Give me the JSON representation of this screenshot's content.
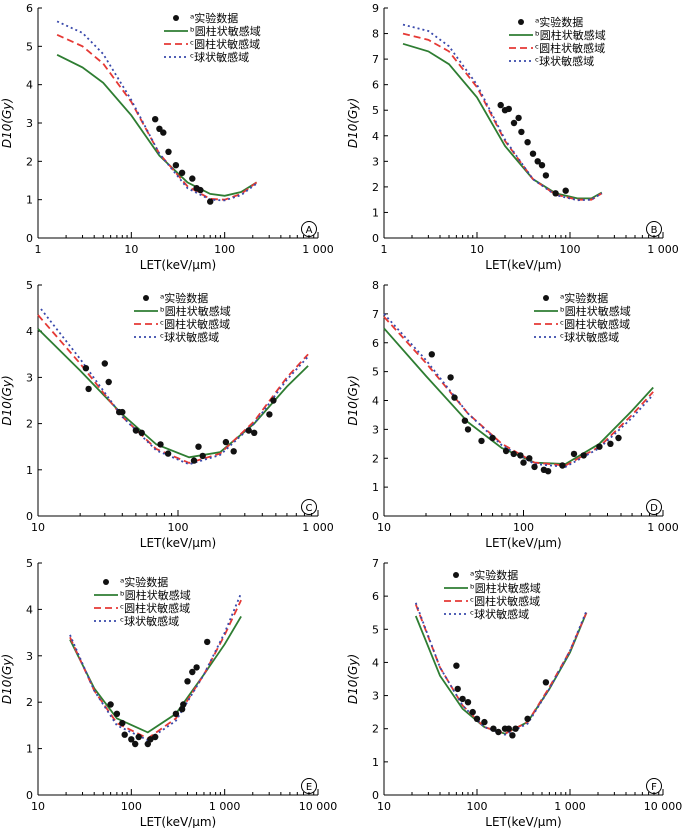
{
  "colors": {
    "experimental": "#111111",
    "cylinder_b": "#2e7d32",
    "cylinder_c": "#e53935",
    "sphere": "#3949ab"
  },
  "legend_labels": [
    "ᵃ实验数据",
    "ᵇ圆柱状敏感域",
    "ᶜ圆柱状敏感域",
    "ᶜ球状敏感域"
  ],
  "chart_data": [
    {
      "panel": "A",
      "type": "line",
      "x_scale": "log",
      "xlim": [
        1,
        1000
      ],
      "ylim": [
        0,
        6
      ],
      "x_ticks": [
        1,
        10,
        100,
        1000
      ],
      "x_tick_labels": [
        "1",
        "10",
        "100",
        "1 000"
      ],
      "y_ticks": [
        0,
        1,
        2,
        3,
        4,
        5,
        6
      ],
      "y_tick_labels": [
        "0",
        "1",
        "2",
        "3",
        "4",
        "5",
        "6"
      ],
      "xlabel": "LET(keV/μm)",
      "ylabel": "D10(Gy)",
      "legend": [
        "ᵃ实验数据",
        "ᵇ圆柱状敏感域",
        "ᶜ圆柱状敏感域",
        "ᶜ球状敏感域"
      ],
      "series": [
        {
          "name": "ᵃ实验数据",
          "style": "scatter",
          "x": [
            18,
            20,
            22,
            25,
            30,
            35,
            45,
            50,
            55,
            70
          ],
          "y": [
            3.1,
            2.85,
            2.75,
            2.25,
            1.9,
            1.7,
            1.55,
            1.3,
            1.25,
            0.95
          ]
        },
        {
          "name": "ᵇ圆柱状敏感域",
          "style": "solid",
          "x": [
            1.6,
            3,
            5,
            10,
            20,
            40,
            70,
            100,
            150,
            220
          ],
          "y": [
            4.78,
            4.45,
            4.05,
            3.2,
            2.15,
            1.45,
            1.15,
            1.1,
            1.2,
            1.45
          ]
        },
        {
          "name": "ᶜ圆柱状敏感域",
          "style": "dashed",
          "x": [
            1.6,
            3,
            5,
            10,
            20,
            40,
            70,
            100,
            150,
            220
          ],
          "y": [
            5.3,
            5.0,
            4.55,
            3.55,
            2.2,
            1.35,
            1.02,
            1.0,
            1.15,
            1.45
          ]
        },
        {
          "name": "ᶜ球状敏感域",
          "style": "dotted",
          "x": [
            1.6,
            3,
            5,
            10,
            20,
            40,
            70,
            100,
            150,
            220
          ],
          "y": [
            5.65,
            5.35,
            4.8,
            3.6,
            2.2,
            1.3,
            1.0,
            0.98,
            1.12,
            1.42
          ]
        }
      ]
    },
    {
      "panel": "B",
      "type": "line",
      "x_scale": "log",
      "xlim": [
        1,
        1000
      ],
      "ylim": [
        0,
        9
      ],
      "x_ticks": [
        1,
        10,
        100,
        1000
      ],
      "x_tick_labels": [
        "1",
        "10",
        "100",
        "1 000"
      ],
      "y_ticks": [
        0,
        1,
        2,
        3,
        4,
        5,
        6,
        7,
        8,
        9
      ],
      "y_tick_labels": [
        "0",
        "1",
        "2",
        "3",
        "4",
        "5",
        "6",
        "7",
        "8",
        "9"
      ],
      "xlabel": "LET(keV/μm)",
      "ylabel": "D10(Gy)",
      "legend": [
        "ᵃ实验数据",
        "ᵇ圆柱状敏感域",
        "ᶜ圆柱状敏感域",
        "ᶜ球状敏感域"
      ],
      "series": [
        {
          "name": "ᵃ实验数据",
          "style": "scatter",
          "x": [
            18,
            20,
            22,
            25,
            28,
            30,
            35,
            40,
            45,
            50,
            55,
            70,
            90
          ],
          "y": [
            5.2,
            5.0,
            5.05,
            4.5,
            4.7,
            4.15,
            3.75,
            3.3,
            3.0,
            2.85,
            2.45,
            1.75,
            1.85
          ]
        },
        {
          "name": "ᵇ圆柱状敏感域",
          "style": "solid",
          "x": [
            1.6,
            3,
            5,
            10,
            20,
            40,
            70,
            120,
            170,
            220
          ],
          "y": [
            7.6,
            7.3,
            6.8,
            5.5,
            3.6,
            2.3,
            1.75,
            1.55,
            1.55,
            1.78
          ]
        },
        {
          "name": "ᶜ圆柱状敏感域",
          "style": "dashed",
          "x": [
            1.6,
            3,
            5,
            10,
            20,
            40,
            70,
            120,
            170,
            220
          ],
          "y": [
            8.0,
            7.75,
            7.3,
            5.9,
            3.8,
            2.3,
            1.7,
            1.5,
            1.5,
            1.75
          ]
        },
        {
          "name": "ᶜ球状敏感域",
          "style": "dotted",
          "x": [
            1.6,
            3,
            5,
            10,
            20,
            40,
            70,
            120,
            170,
            220
          ],
          "y": [
            8.35,
            8.1,
            7.5,
            6.0,
            3.85,
            2.3,
            1.68,
            1.48,
            1.5,
            1.75
          ]
        }
      ]
    },
    {
      "panel": "C",
      "type": "line",
      "x_scale": "log",
      "xlim": [
        10,
        1000
      ],
      "ylim": [
        0,
        5
      ],
      "x_ticks": [
        10,
        100,
        1000
      ],
      "x_tick_labels": [
        "10",
        "100",
        "1 000"
      ],
      "y_ticks": [
        0,
        1,
        2,
        3,
        4,
        5
      ],
      "y_tick_labels": [
        "0",
        "1",
        "2",
        "3",
        "4",
        "5"
      ],
      "xlabel": "LET(keV/μm)",
      "ylabel": "D10(Gy)",
      "legend": [
        "ᵃ实验数据",
        "ᵇ圆柱状敏感域",
        "ᶜ圆柱状敏感域",
        "ᶜ球状敏感域"
      ],
      "series": [
        {
          "name": "ᵃ实验数据",
          "style": "scatter",
          "x": [
            22,
            23,
            30,
            32,
            38,
            40,
            50,
            55,
            75,
            85,
            130,
            140,
            150,
            220,
            250,
            320,
            350,
            450,
            480
          ],
          "y": [
            3.2,
            2.75,
            3.3,
            2.9,
            2.25,
            2.25,
            1.85,
            1.8,
            1.55,
            1.35,
            1.2,
            1.5,
            1.3,
            1.6,
            1.4,
            1.85,
            1.8,
            2.2,
            2.5
          ]
        },
        {
          "name": "ᵇ圆柱状敏感域",
          "style": "solid",
          "x": [
            10,
            20,
            40,
            70,
            120,
            200,
            350,
            600,
            850
          ],
          "y": [
            4.05,
            3.15,
            2.2,
            1.55,
            1.27,
            1.38,
            2.0,
            2.8,
            3.25
          ]
        },
        {
          "name": "ᶜ圆柱状敏感域",
          "style": "dashed",
          "x": [
            10,
            20,
            40,
            70,
            120,
            200,
            350,
            600,
            850
          ],
          "y": [
            4.35,
            3.3,
            2.15,
            1.45,
            1.15,
            1.35,
            2.05,
            3.0,
            3.5
          ]
        },
        {
          "name": "ᶜ球状敏感域",
          "style": "dotted",
          "x": [
            10.5,
            20,
            40,
            70,
            120,
            200,
            350,
            600,
            850
          ],
          "y": [
            4.48,
            3.4,
            2.15,
            1.42,
            1.12,
            1.32,
            2.0,
            2.95,
            3.45
          ]
        }
      ]
    },
    {
      "panel": "D",
      "type": "line",
      "x_scale": "log",
      "xlim": [
        10,
        1000
      ],
      "ylim": [
        0,
        8
      ],
      "x_ticks": [
        10,
        100,
        1000
      ],
      "x_tick_labels": [
        "10",
        "100",
        "1 000"
      ],
      "y_ticks": [
        0,
        1,
        2,
        3,
        4,
        5,
        6,
        7,
        8
      ],
      "y_tick_labels": [
        "0",
        "1",
        "2",
        "3",
        "4",
        "5",
        "6",
        "7",
        "8"
      ],
      "xlabel": "LET(keV/μm)",
      "ylabel": "D10(Gy)",
      "legend": [
        "ᵃ实验数据",
        "ᵇ圆柱状敏感域",
        "ᶜ圆柱状敏感域",
        "ᶜ球状敏感域"
      ],
      "series": [
        {
          "name": "ᵃ实验数据",
          "style": "scatter",
          "x": [
            22,
            30,
            32,
            38,
            40,
            50,
            60,
            75,
            85,
            95,
            100,
            110,
            120,
            140,
            150,
            190,
            230,
            270,
            350,
            420,
            480
          ],
          "y": [
            5.6,
            4.8,
            4.1,
            3.3,
            3.0,
            2.6,
            2.7,
            2.25,
            2.15,
            2.1,
            1.85,
            2.0,
            1.7,
            1.6,
            1.55,
            1.75,
            2.15,
            2.1,
            2.4,
            2.5,
            2.7
          ]
        },
        {
          "name": "ᵇ圆柱状敏感域",
          "style": "solid",
          "x": [
            10,
            20,
            40,
            70,
            120,
            200,
            350,
            600,
            850
          ],
          "y": [
            6.5,
            4.85,
            3.25,
            2.35,
            1.85,
            1.8,
            2.5,
            3.65,
            4.45
          ]
        },
        {
          "name": "ᶜ圆柱状敏感域",
          "style": "dashed",
          "x": [
            10,
            20,
            40,
            70,
            120,
            200,
            350,
            600,
            850
          ],
          "y": [
            6.9,
            5.3,
            3.55,
            2.5,
            1.85,
            1.75,
            2.4,
            3.5,
            4.3
          ]
        },
        {
          "name": "ᶜ球状敏感域",
          "style": "dotted",
          "x": [
            10,
            20,
            40,
            70,
            120,
            200,
            350,
            600,
            850
          ],
          "y": [
            7.0,
            5.4,
            3.55,
            2.45,
            1.8,
            1.7,
            2.35,
            3.4,
            4.2
          ]
        }
      ]
    },
    {
      "panel": "E",
      "type": "line",
      "x_scale": "log",
      "xlim": [
        10,
        10000
      ],
      "ylim": [
        0,
        5
      ],
      "x_ticks": [
        10,
        100,
        1000,
        10000
      ],
      "x_tick_labels": [
        "10",
        "100",
        "1 000",
        "10 000"
      ],
      "y_ticks": [
        0,
        1,
        2,
        3,
        4,
        5
      ],
      "y_tick_labels": [
        "0",
        "1",
        "2",
        "3",
        "4",
        "5"
      ],
      "xlabel": "LET(keV/μm)",
      "ylabel": "D10(Gy)",
      "legend": [
        "ᵃ实验数据",
        "ᵇ圆柱状敏感域",
        "ᶜ圆柱状敏感域",
        "ᶜ球状敏感域"
      ],
      "series": [
        {
          "name": "ᵃ实验数据",
          "style": "scatter",
          "x": [
            60,
            70,
            80,
            85,
            100,
            110,
            120,
            150,
            160,
            180,
            300,
            350,
            360,
            400,
            450,
            500,
            650
          ],
          "y": [
            1.95,
            1.75,
            1.55,
            1.3,
            1.2,
            1.1,
            1.25,
            1.1,
            1.2,
            1.25,
            1.75,
            1.85,
            1.95,
            2.45,
            2.65,
            2.75,
            3.3
          ]
        },
        {
          "name": "ᵇ圆柱状敏感域",
          "style": "solid",
          "x": [
            22,
            40,
            70,
            150,
            300,
            600,
            1000,
            1500
          ],
          "y": [
            3.35,
            2.3,
            1.65,
            1.35,
            1.75,
            2.6,
            3.25,
            3.85
          ]
        },
        {
          "name": "ᶜ圆柱状敏感域",
          "style": "dashed",
          "x": [
            22,
            40,
            70,
            150,
            300,
            600,
            1000,
            1500
          ],
          "y": [
            3.4,
            2.25,
            1.55,
            1.22,
            1.65,
            2.6,
            3.45,
            4.2
          ]
        },
        {
          "name": "ᶜ球状敏感域",
          "style": "dotted",
          "x": [
            22,
            40,
            70,
            150,
            300,
            600,
            1000,
            1500
          ],
          "y": [
            3.45,
            2.25,
            1.5,
            1.18,
            1.6,
            2.6,
            3.5,
            4.35
          ]
        }
      ]
    },
    {
      "panel": "F",
      "type": "line",
      "x_scale": "log",
      "xlim": [
        10,
        10000
      ],
      "ylim": [
        0,
        7
      ],
      "x_ticks": [
        10,
        100,
        1000,
        10000
      ],
      "x_tick_labels": [
        "10",
        "100",
        "1 000",
        "10 000"
      ],
      "y_ticks": [
        0,
        1,
        2,
        3,
        4,
        5,
        6,
        7
      ],
      "y_tick_labels": [
        "0",
        "1",
        "2",
        "3",
        "4",
        "5",
        "6",
        "7"
      ],
      "xlabel": "LET(keV/μm)",
      "ylabel": "D10(Gy)",
      "legend": [
        "ᵃ实验数据",
        "ᵇ圆柱状敏感域",
        "ᶜ圆柱状敏感域",
        "ᶜ球状敏感域"
      ],
      "series": [
        {
          "name": "ᵃ实验数据",
          "style": "scatter",
          "x": [
            60,
            62,
            70,
            80,
            90,
            100,
            120,
            150,
            170,
            200,
            220,
            240,
            260,
            350,
            550
          ],
          "y": [
            3.9,
            3.2,
            2.9,
            2.8,
            2.5,
            2.3,
            2.2,
            2.0,
            1.9,
            2.0,
            2.0,
            1.8,
            2.0,
            2.3,
            3.4
          ]
        },
        {
          "name": "ᵇ圆柱状敏感域",
          "style": "solid",
          "x": [
            22,
            40,
            70,
            120,
            200,
            350,
            600,
            1000,
            1500
          ],
          "y": [
            5.4,
            3.6,
            2.6,
            2.05,
            1.85,
            2.2,
            3.2,
            4.3,
            5.5
          ]
        },
        {
          "name": "ᶜ圆柱状敏感域",
          "style": "dashed",
          "x": [
            22,
            40,
            70,
            120,
            200,
            350,
            600,
            1000,
            1500
          ],
          "y": [
            5.75,
            3.85,
            2.7,
            2.05,
            1.85,
            2.2,
            3.25,
            4.35,
            5.5
          ]
        },
        {
          "name": "ᶜ球状敏感域",
          "style": "dotted",
          "x": [
            22,
            40,
            70,
            120,
            200,
            350,
            600,
            1000,
            1500
          ],
          "y": [
            5.8,
            3.85,
            2.7,
            2.05,
            1.82,
            2.15,
            3.2,
            4.35,
            5.55
          ]
        }
      ]
    }
  ]
}
